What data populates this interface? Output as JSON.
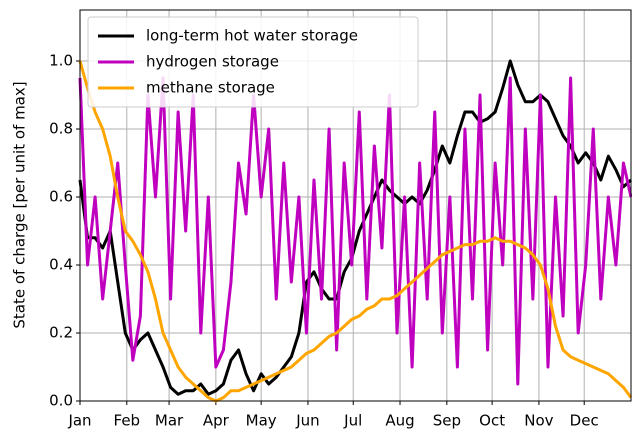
{
  "chart_data": {
    "type": "line",
    "ylabel": "State of charge [per unit of max]",
    "x": [
      0,
      5,
      10,
      15,
      20,
      25,
      30,
      35,
      40,
      45,
      50,
      55,
      60,
      65,
      70,
      75,
      80,
      85,
      90,
      95,
      100,
      105,
      110,
      115,
      120,
      125,
      130,
      135,
      140,
      145,
      150,
      155,
      160,
      165,
      170,
      175,
      180,
      185,
      190,
      195,
      200,
      205,
      210,
      215,
      220,
      225,
      230,
      235,
      240,
      245,
      250,
      255,
      260,
      265,
      270,
      275,
      280,
      285,
      290,
      295,
      300,
      305,
      310,
      315,
      320,
      325,
      330,
      335,
      340,
      345,
      350,
      355,
      360,
      365
    ],
    "xlim": [
      0,
      365
    ],
    "xticks": [
      {
        "value": 0,
        "label": "Jan"
      },
      {
        "value": 31,
        "label": "Feb"
      },
      {
        "value": 59,
        "label": "Mar"
      },
      {
        "value": 90,
        "label": "Apr"
      },
      {
        "value": 120,
        "label": "May"
      },
      {
        "value": 151,
        "label": "Jun"
      },
      {
        "value": 181,
        "label": "Jul"
      },
      {
        "value": 212,
        "label": "Aug"
      },
      {
        "value": 243,
        "label": "Sep"
      },
      {
        "value": 273,
        "label": "Oct"
      },
      {
        "value": 304,
        "label": "Nov"
      },
      {
        "value": 334,
        "label": "Dec"
      }
    ],
    "ylim": [
      0,
      1.15
    ],
    "yticks": [
      {
        "value": 0,
        "label": "0.0"
      },
      {
        "value": 0.2,
        "label": "0.2"
      },
      {
        "value": 0.4,
        "label": "0.4"
      },
      {
        "value": 0.6,
        "label": "0.6"
      },
      {
        "value": 0.8,
        "label": "0.8"
      },
      {
        "value": 1,
        "label": "1.0"
      }
    ],
    "grid": true,
    "legend": "upper left",
    "series": [
      {
        "name": "long-term hot water storage",
        "color": "#000000",
        "values": [
          0.65,
          0.48,
          0.48,
          0.45,
          0.5,
          0.35,
          0.2,
          0.15,
          0.18,
          0.2,
          0.15,
          0.1,
          0.04,
          0.02,
          0.03,
          0.03,
          0.05,
          0.02,
          0.03,
          0.05,
          0.12,
          0.15,
          0.08,
          0.03,
          0.08,
          0.05,
          0.07,
          0.1,
          0.13,
          0.2,
          0.35,
          0.38,
          0.33,
          0.3,
          0.3,
          0.38,
          0.42,
          0.5,
          0.55,
          0.6,
          0.65,
          0.62,
          0.6,
          0.58,
          0.6,
          0.58,
          0.62,
          0.68,
          0.75,
          0.7,
          0.78,
          0.85,
          0.85,
          0.82,
          0.83,
          0.85,
          0.92,
          1.0,
          0.93,
          0.88,
          0.88,
          0.9,
          0.88,
          0.83,
          0.78,
          0.75,
          0.7,
          0.73,
          0.7,
          0.65,
          0.72,
          0.68,
          0.63,
          0.65
        ]
      },
      {
        "name": "hydrogen storage",
        "color": "#bf00bf",
        "values": [
          0.95,
          0.4,
          0.6,
          0.3,
          0.5,
          0.7,
          0.4,
          0.12,
          0.25,
          0.9,
          0.6,
          0.95,
          0.3,
          0.85,
          0.5,
          0.9,
          0.2,
          0.6,
          0.1,
          0.15,
          0.35,
          0.7,
          0.55,
          0.9,
          0.6,
          0.8,
          0.3,
          0.7,
          0.35,
          0.6,
          0.2,
          0.65,
          0.3,
          0.8,
          0.15,
          0.7,
          0.4,
          0.85,
          0.3,
          0.75,
          0.45,
          0.9,
          0.2,
          0.6,
          0.1,
          0.7,
          0.3,
          0.85,
          0.2,
          0.6,
          0.1,
          0.8,
          0.3,
          0.9,
          0.15,
          0.7,
          0.4,
          0.95,
          0.05,
          0.8,
          0.3,
          0.9,
          0.1,
          0.6,
          0.25,
          0.95,
          0.2,
          0.4,
          0.8,
          0.3,
          0.6,
          0.4,
          0.7,
          0.6
        ]
      },
      {
        "name": "methane storage",
        "color": "#ffa500",
        "values": [
          1.0,
          0.92,
          0.85,
          0.8,
          0.72,
          0.6,
          0.5,
          0.47,
          0.43,
          0.38,
          0.3,
          0.2,
          0.15,
          0.1,
          0.07,
          0.05,
          0.03,
          0.01,
          0.0,
          0.01,
          0.03,
          0.03,
          0.04,
          0.05,
          0.06,
          0.07,
          0.08,
          0.09,
          0.1,
          0.12,
          0.14,
          0.15,
          0.17,
          0.19,
          0.2,
          0.22,
          0.24,
          0.25,
          0.27,
          0.28,
          0.3,
          0.3,
          0.31,
          0.33,
          0.35,
          0.37,
          0.39,
          0.41,
          0.43,
          0.44,
          0.45,
          0.46,
          0.46,
          0.47,
          0.47,
          0.48,
          0.47,
          0.47,
          0.46,
          0.45,
          0.43,
          0.4,
          0.33,
          0.22,
          0.15,
          0.13,
          0.12,
          0.11,
          0.1,
          0.09,
          0.08,
          0.06,
          0.04,
          0.01
        ]
      }
    ]
  }
}
